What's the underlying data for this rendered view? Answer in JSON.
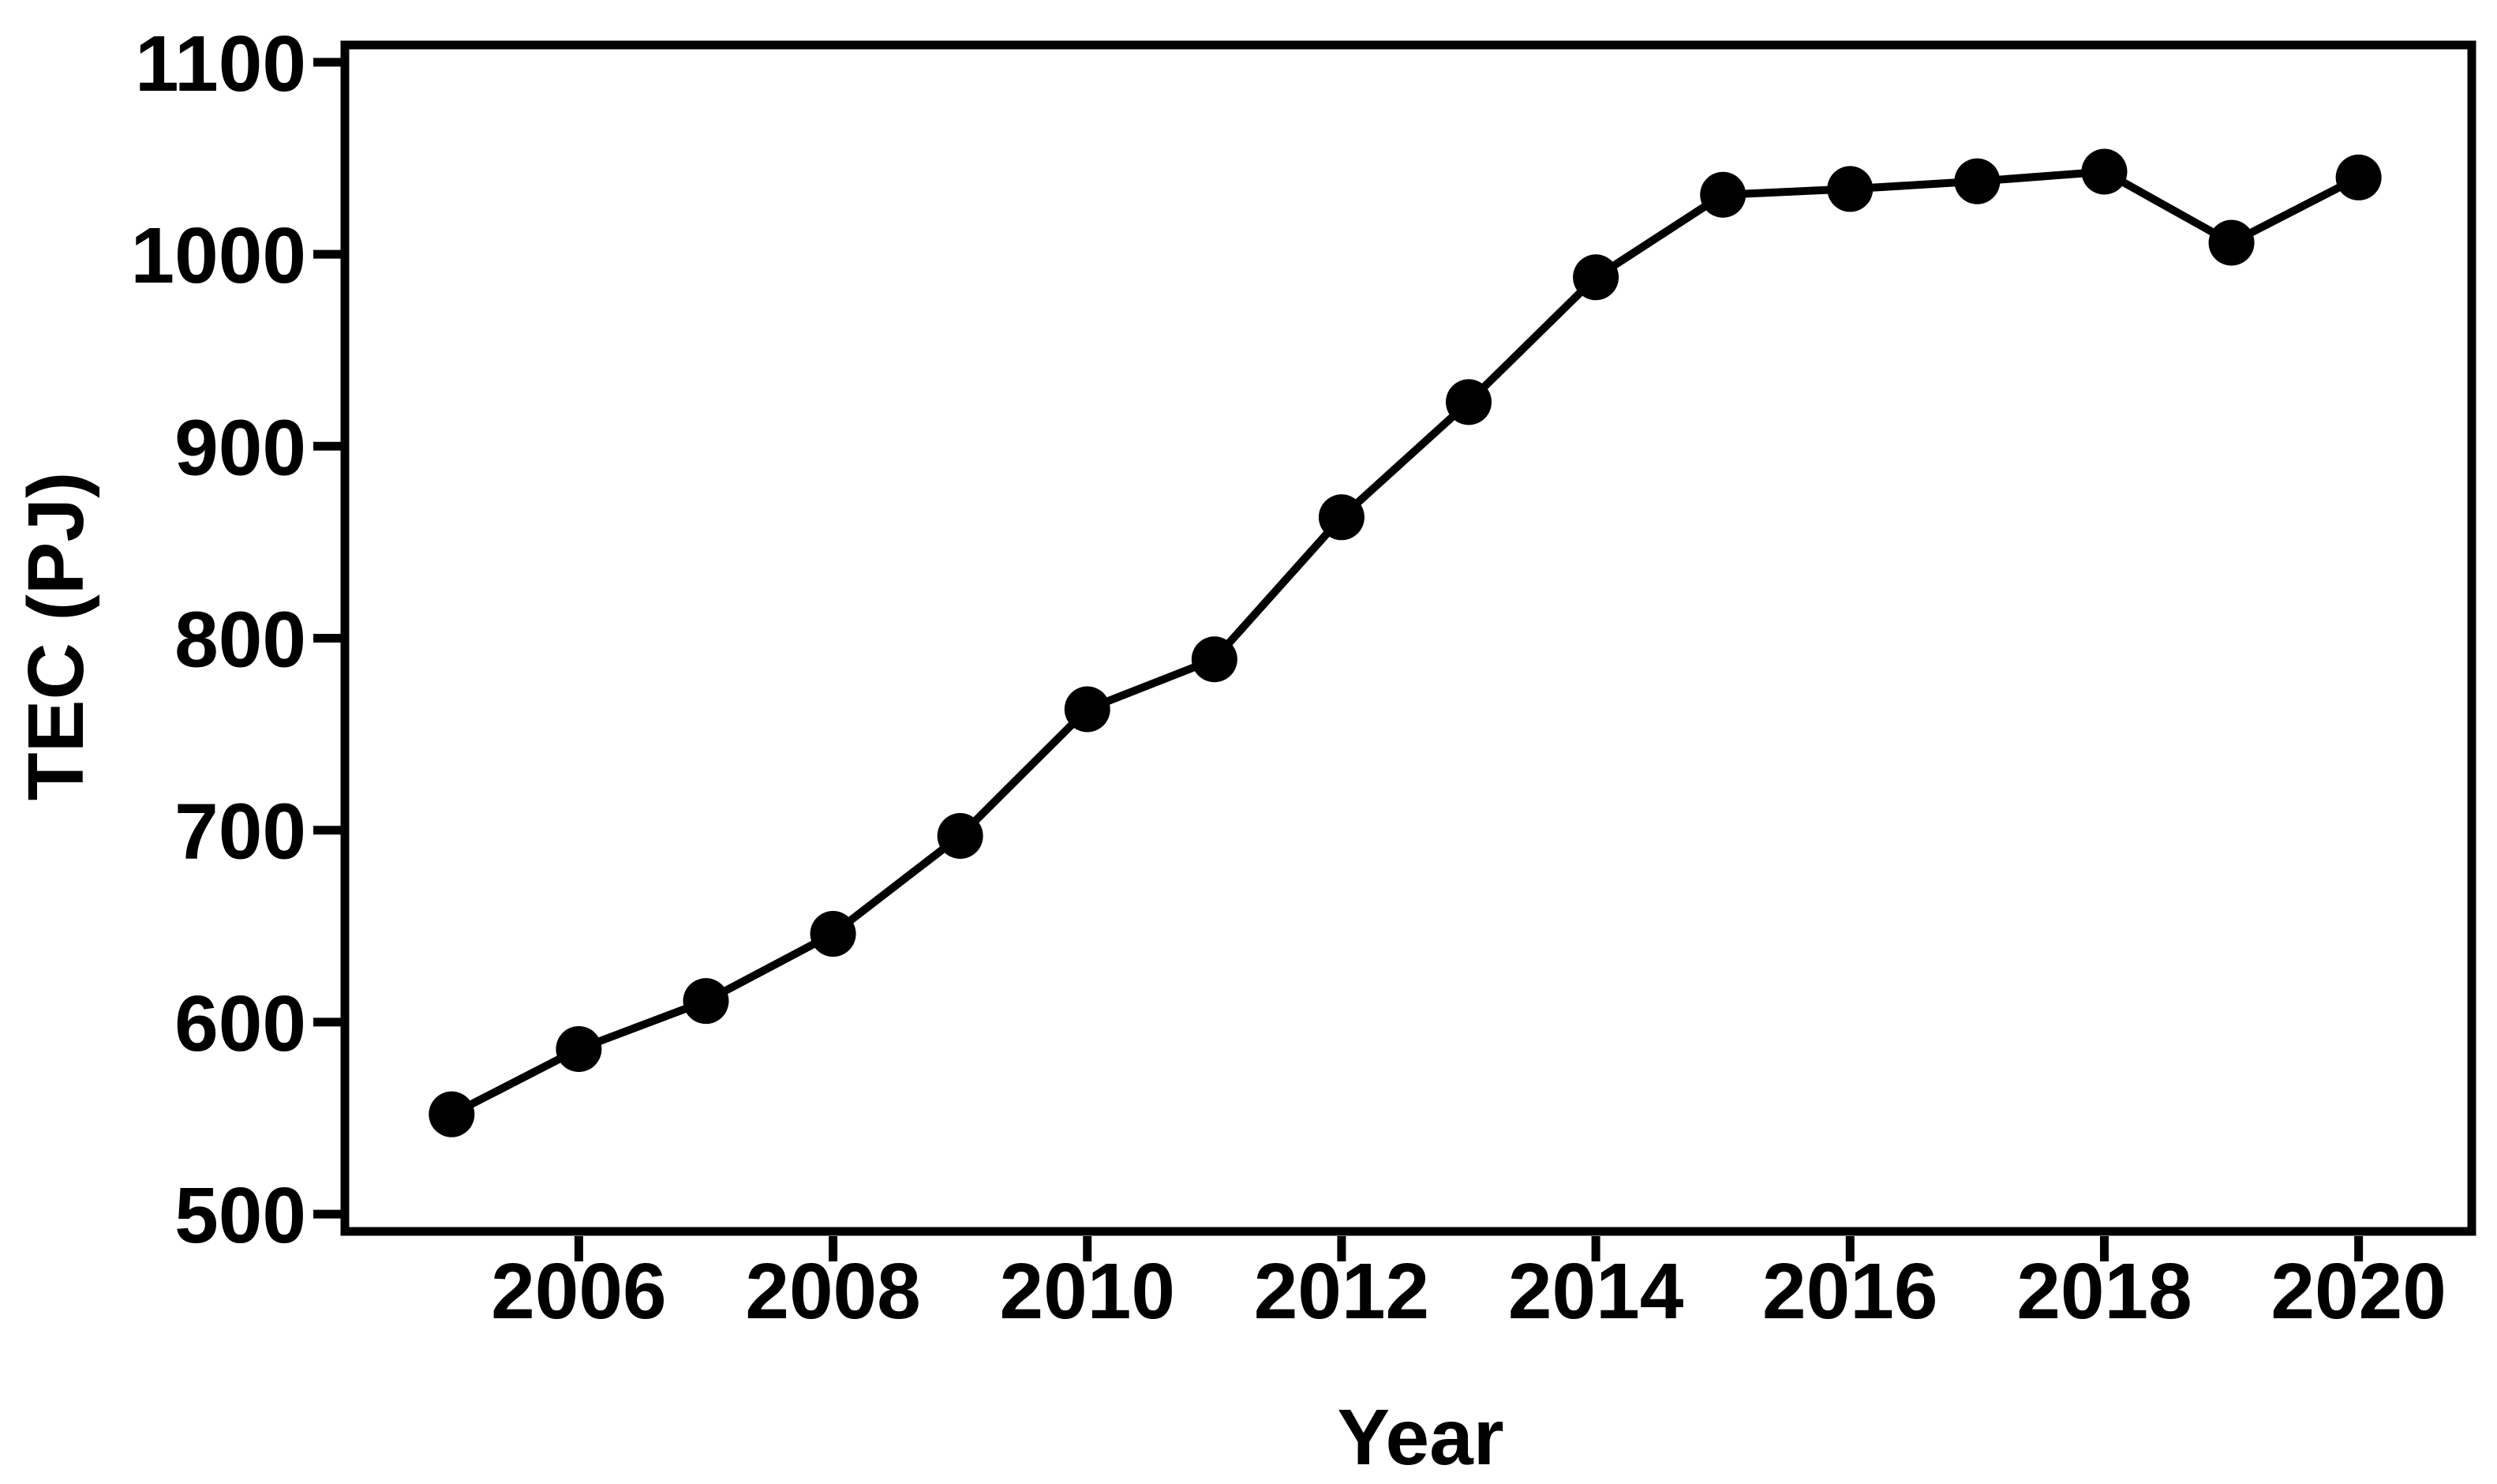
{
  "figure": {
    "background": "#ffffff",
    "foreground": "#000000"
  },
  "chart_data": {
    "type": "line",
    "title": "",
    "xlabel": "Year",
    "ylabel": "TEC (PJ)",
    "x": [
      2005,
      2006,
      2007,
      2008,
      2009,
      2010,
      2011,
      2012,
      2013,
      2014,
      2015,
      2016,
      2017,
      2018,
      2019,
      2020
    ],
    "values": [
      552,
      586,
      611,
      646,
      697,
      763,
      789,
      863,
      923,
      988,
      1031,
      1034,
      1038,
      1043,
      1006,
      1040
    ],
    "x_ticks": [
      2006,
      2008,
      2010,
      2012,
      2014,
      2016,
      2018,
      2020
    ],
    "y_ticks": [
      500,
      600,
      700,
      800,
      900,
      1000,
      1100
    ],
    "xlim": [
      2004.16,
      2020.89
    ],
    "ylim": [
      491,
      1109
    ],
    "grid": false,
    "legend": "none",
    "line_color": "#000000",
    "axis_color": "#000000",
    "marker": "filled-circle"
  }
}
